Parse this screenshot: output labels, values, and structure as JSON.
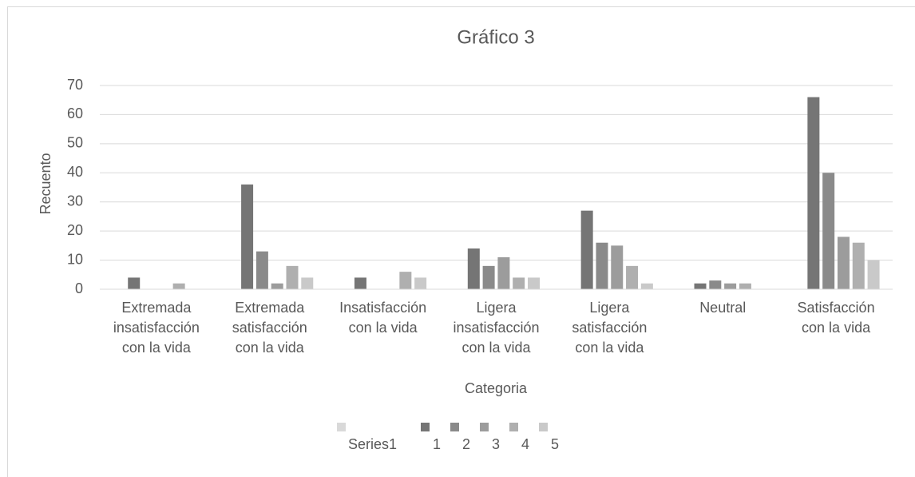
{
  "chart_data": {
    "type": "bar",
    "title": "Gráfico 3",
    "x_label": "Categoria",
    "y_label": "Recuento",
    "categories": [
      "Extremada insatisfacción con la vida",
      "Extremada satisfacción con la vida",
      "Insatisfacción con la vida",
      "Ligera insatisfacción con la vida",
      "Ligera satisfacción con la vida",
      "Neutral",
      "Satisfacción con la vida"
    ],
    "series": [
      {
        "name": "Series1",
        "color": "#d9d9d9",
        "values": [
          null,
          null,
          null,
          null,
          null,
          null,
          null
        ]
      },
      {
        "name": "1",
        "color": "#757575",
        "values": [
          4,
          36,
          4,
          14,
          27,
          2,
          66
        ]
      },
      {
        "name": "2",
        "color": "#8a8a8a",
        "values": [
          null,
          13,
          null,
          8,
          16,
          3,
          40
        ]
      },
      {
        "name": "3",
        "color": "#9c9c9c",
        "values": [
          null,
          2,
          null,
          11,
          15,
          2,
          18
        ]
      },
      {
        "name": "4",
        "color": "#afafaf",
        "values": [
          2,
          8,
          6,
          4,
          8,
          2,
          16
        ]
      },
      {
        "name": "5",
        "color": "#c9c9c9",
        "values": [
          null,
          4,
          4,
          4,
          2,
          null,
          10
        ]
      }
    ],
    "ylim": [
      0,
      70
    ],
    "yticks": [
      0,
      10,
      20,
      30,
      40,
      50,
      60,
      70
    ],
    "grid": true
  }
}
